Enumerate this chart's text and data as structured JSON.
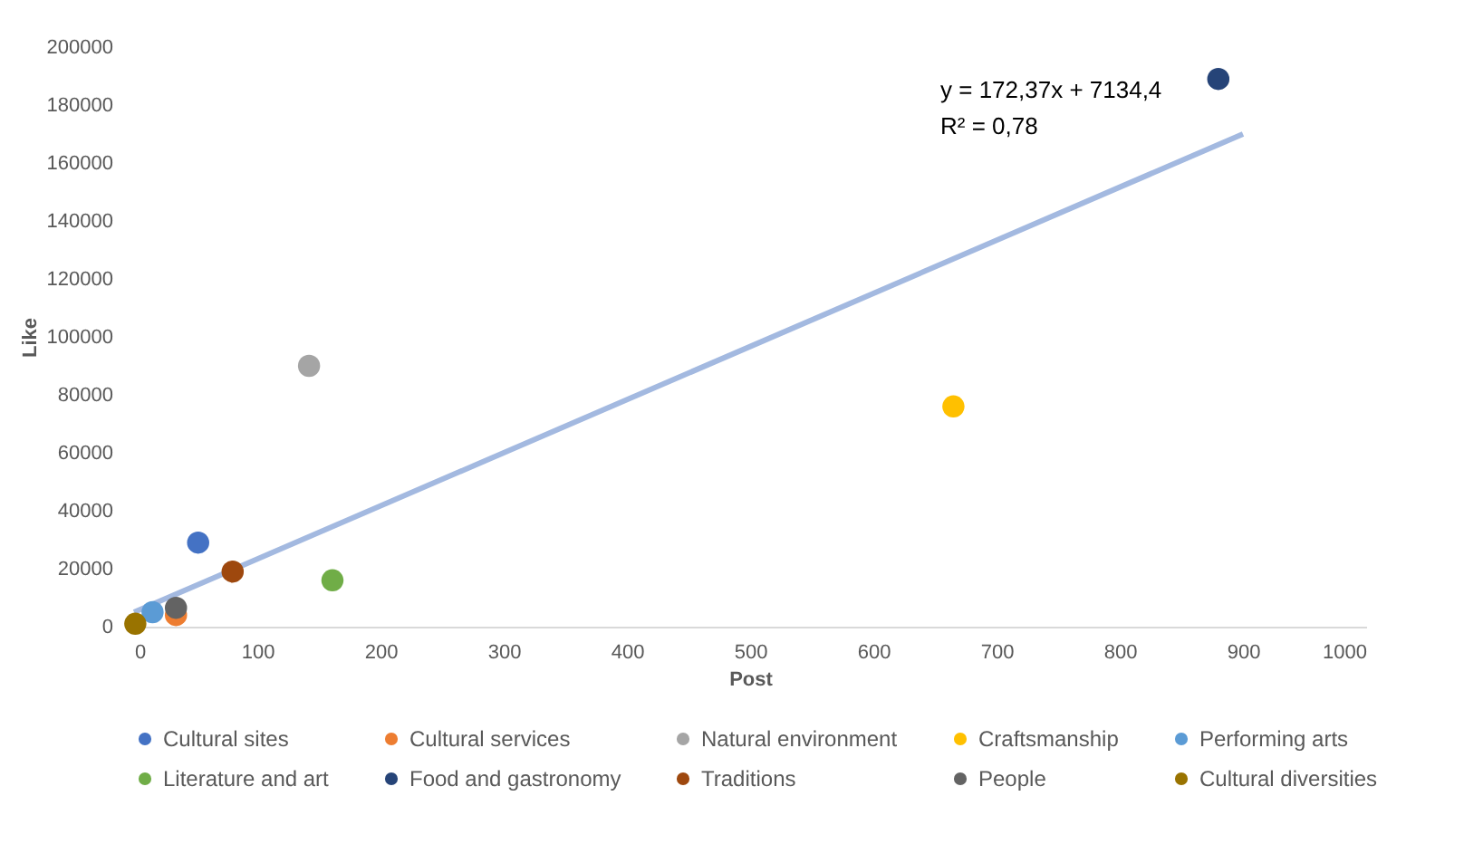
{
  "chart_data": {
    "type": "scatter",
    "xlabel": "Post",
    "ylabel": "Like",
    "xlim": [
      0,
      1000
    ],
    "xticks": [
      0,
      100,
      200,
      300,
      400,
      500,
      600,
      700,
      800,
      900,
      1000
    ],
    "ylim": [
      0,
      200000
    ],
    "yticks": [
      0,
      20000,
      40000,
      60000,
      80000,
      100000,
      120000,
      140000,
      160000,
      180000,
      200000
    ],
    "grid": false,
    "legend": "bottom",
    "marker": "circle",
    "annotations": [
      "y = 172,37x + 7134,4",
      "R² = 0,78"
    ],
    "series": [
      {
        "name": "Cultural sites",
        "color": "#4472c4",
        "x": [
          52
        ],
        "values": [
          29000
        ]
      },
      {
        "name": "Cultural services",
        "color": "#ed7d31",
        "x": [
          34
        ],
        "values": [
          4000
        ]
      },
      {
        "name": "Natural environment",
        "color": "#a5a5a5",
        "x": [
          142
        ],
        "values": [
          90000
        ]
      },
      {
        "name": "Craftsmanship",
        "color": "#ffc000",
        "x": [
          665
        ],
        "values": [
          76000
        ]
      },
      {
        "name": "Performing arts",
        "color": "#5b9bd5",
        "x": [
          15
        ],
        "values": [
          5000
        ]
      },
      {
        "name": "Literature and art",
        "color": "#70ad47",
        "x": [
          161
        ],
        "values": [
          16000
        ]
      },
      {
        "name": "Food and gastronomy",
        "color": "#264478",
        "x": [
          880
        ],
        "values": [
          189000
        ]
      },
      {
        "name": "Traditions",
        "color": "#9e480e",
        "x": [
          80
        ],
        "values": [
          19000
        ]
      },
      {
        "name": "People",
        "color": "#636363",
        "x": [
          34
        ],
        "values": [
          6500
        ]
      },
      {
        "name": "Cultural diversities",
        "color": "#997300",
        "x": [
          1
        ],
        "values": [
          1000
        ]
      },
      {
        "type": "line",
        "marker": "none",
        "color": "#a3b9e0",
        "x": [
          0,
          900
        ],
        "values": [
          5000,
          170000
        ]
      }
    ]
  }
}
